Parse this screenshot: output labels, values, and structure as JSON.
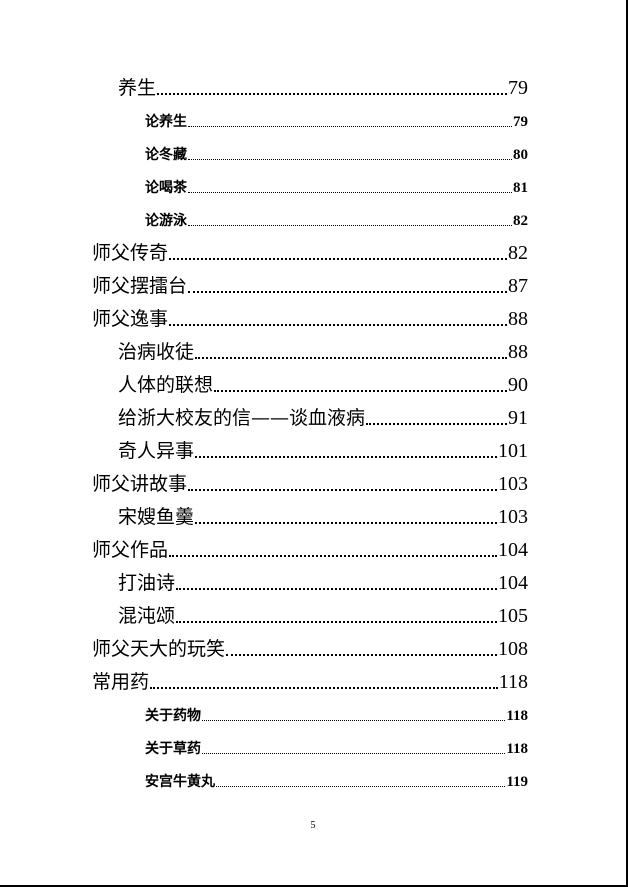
{
  "toc": [
    {
      "title": "养生",
      "page": "79",
      "level": 2
    },
    {
      "title": "论养生",
      "page": "79",
      "level": 3
    },
    {
      "title": "论冬藏",
      "page": "80",
      "level": 3
    },
    {
      "title": "论喝茶",
      "page": "81",
      "level": 3
    },
    {
      "title": "论游泳",
      "page": "82",
      "level": 3
    },
    {
      "title": "师父传奇",
      "page": "82",
      "level": 1
    },
    {
      "title": "师父摆擂台",
      "page": "87",
      "level": 1
    },
    {
      "title": "师父逸事",
      "page": "88",
      "level": 1
    },
    {
      "title": "治病收徒",
      "page": "88",
      "level": 2
    },
    {
      "title": "人体的联想",
      "page": "90",
      "level": 2
    },
    {
      "title": "给浙大校友的信——谈血液病",
      "page": "91",
      "level": 2
    },
    {
      "title": "奇人异事",
      "page": "101",
      "level": 2
    },
    {
      "title": "师父讲故事",
      "page": "103",
      "level": 1
    },
    {
      "title": "宋嫂鱼羹",
      "page": "103",
      "level": 2
    },
    {
      "title": "师父作品",
      "page": "104",
      "level": 1
    },
    {
      "title": "打油诗",
      "page": "104",
      "level": 2
    },
    {
      "title": "混沌颂",
      "page": "105",
      "level": 2
    },
    {
      "title": "师父天大的玩笑",
      "page": "108",
      "level": 1
    },
    {
      "title": "常用药",
      "page": "118",
      "level": 1
    },
    {
      "title": "关于药物",
      "page": "118",
      "level": 3
    },
    {
      "title": "关于草药",
      "page": "118",
      "level": 3
    },
    {
      "title": "安宫牛黄丸",
      "page": "119",
      "level": 3
    }
  ],
  "page_number": "5"
}
